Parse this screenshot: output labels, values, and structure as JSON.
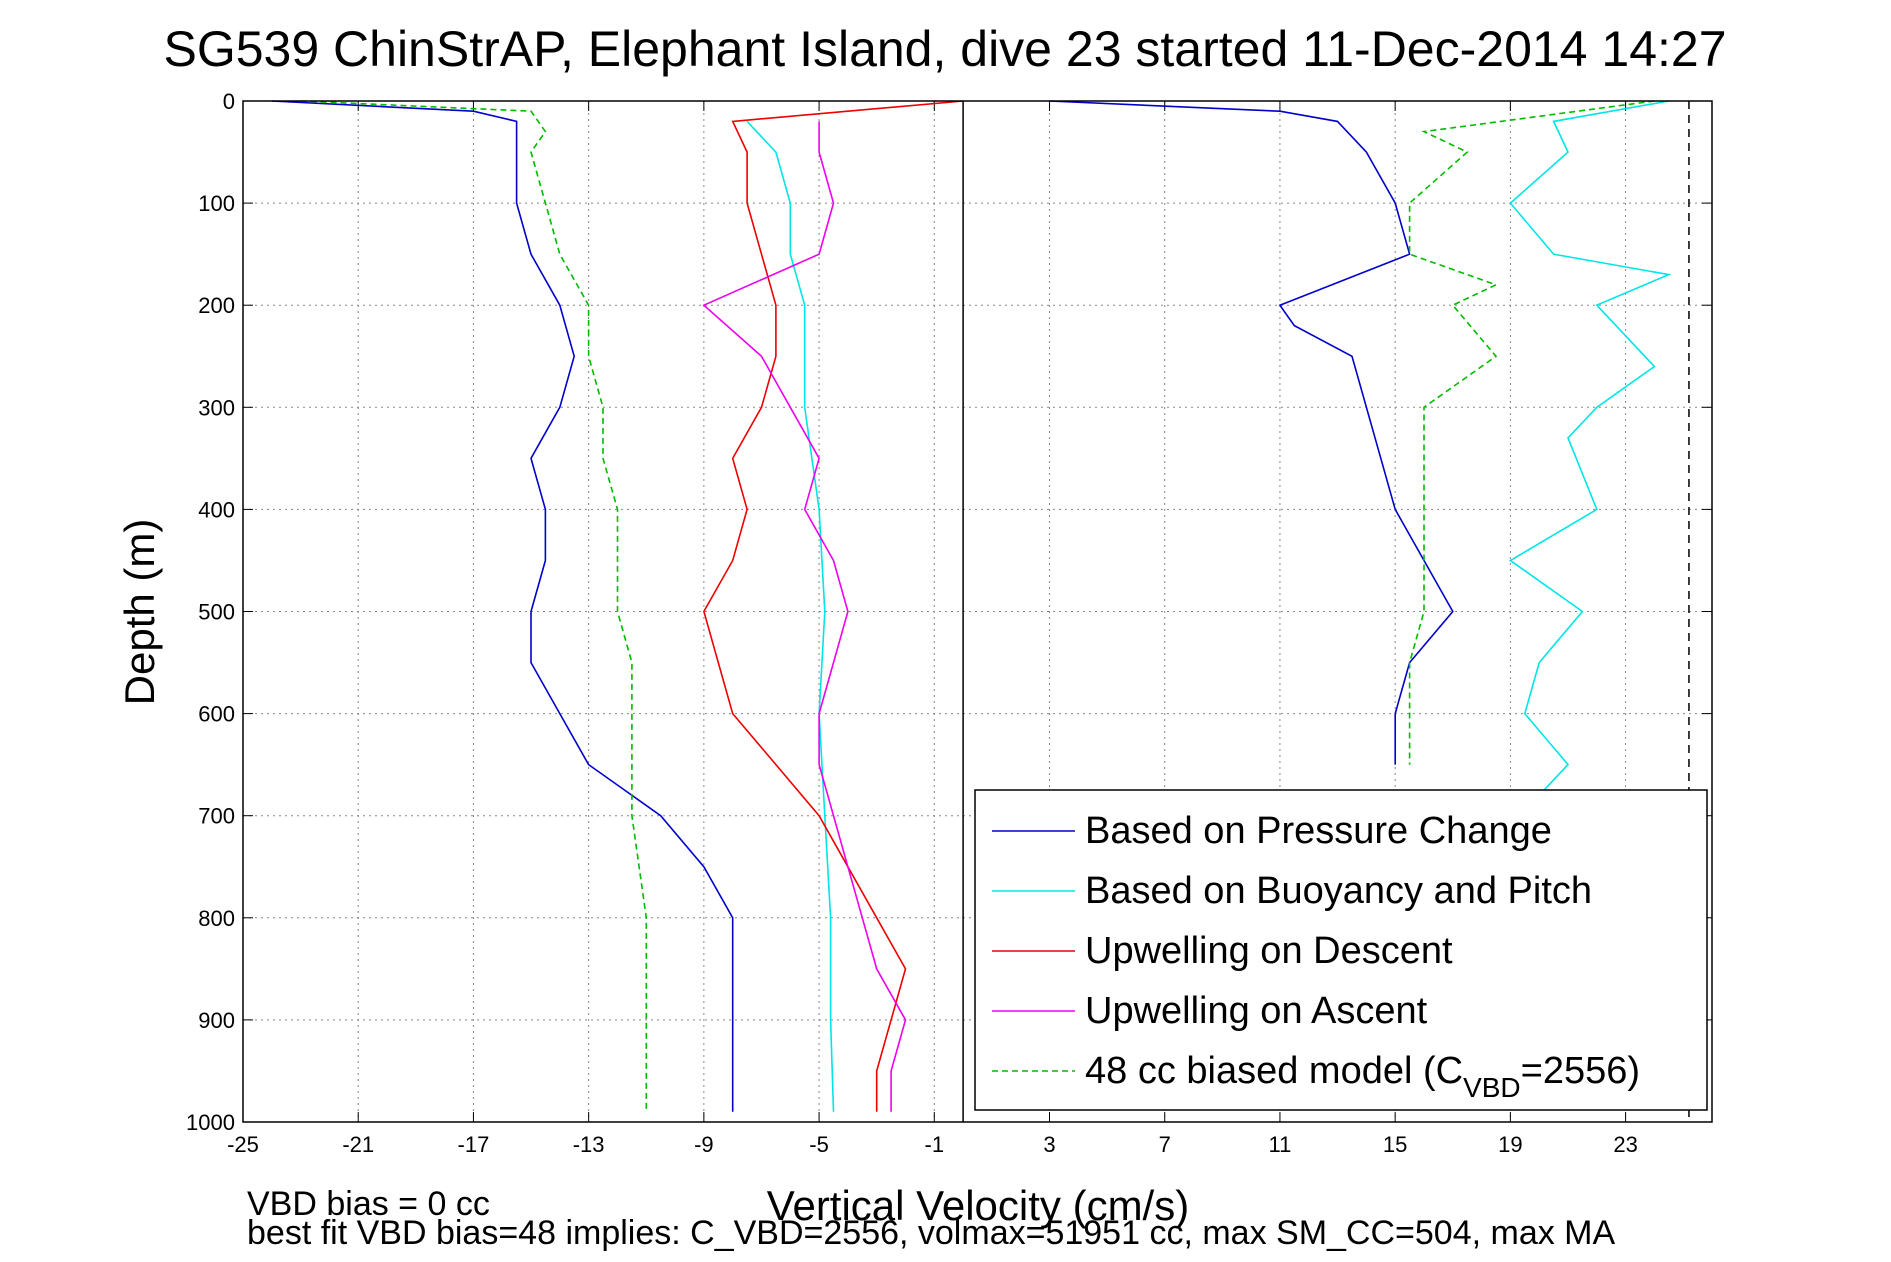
{
  "chart_data": {
    "type": "line",
    "title": "SG539 ChinStrAP, Elephant Island, dive 23 started 11-Dec-2014 14:27",
    "xlabel": "Vertical Velocity (cm/s)",
    "ylabel": "Depth (m)",
    "xlim": [
      -25,
      26
    ],
    "ylim": [
      1000,
      0
    ],
    "y_reversed": true,
    "grid": true,
    "x_ticks": [
      -25,
      -21,
      -17,
      -13,
      -9,
      -5,
      -1,
      3,
      7,
      11,
      15,
      19,
      23
    ],
    "y_ticks": [
      0,
      100,
      200,
      300,
      400,
      500,
      600,
      700,
      800,
      900,
      1000
    ],
    "vertical_lines": [
      {
        "x": 0,
        "style": "solid",
        "color": "#000000"
      },
      {
        "x": 25.2,
        "style": "dashed",
        "color": "#000000"
      }
    ],
    "legend_position": "bottom-right",
    "series": [
      {
        "name": "Based on Pressure Change",
        "color": "#0000cc",
        "style": "solid",
        "panel": "left",
        "depth": [
          0,
          10,
          20,
          50,
          100,
          150,
          200,
          250,
          300,
          350,
          400,
          450,
          500,
          550,
          600,
          650,
          700,
          750,
          800,
          850,
          900,
          950,
          990
        ],
        "values": [
          -24,
          -17,
          -15.5,
          -15.5,
          -15.5,
          -15,
          -14,
          -13.5,
          -14,
          -15,
          -14.5,
          -14.5,
          -15,
          -15,
          -14,
          -13,
          -10.5,
          -9,
          -8,
          -8,
          -8,
          -8,
          -8
        ]
      },
      {
        "name": "Based on Pressure Change",
        "color": "#0000cc",
        "style": "solid",
        "panel": "right",
        "depth": [
          0,
          10,
          20,
          50,
          100,
          150,
          200,
          220,
          250,
          300,
          350,
          400,
          450,
          500,
          550,
          600,
          650
        ],
        "values": [
          3,
          11,
          13,
          14,
          15,
          15.5,
          11,
          11.5,
          13.5,
          14,
          14.5,
          15,
          16,
          17,
          15.5,
          15,
          15
        ]
      },
      {
        "name": "Based on Buoyancy and Pitch",
        "color": "#00e5e5",
        "style": "solid",
        "panel": "left",
        "depth": [
          20,
          50,
          100,
          150,
          200,
          300,
          400,
          500,
          600,
          700,
          800,
          900,
          990
        ],
        "values": [
          -7.5,
          -6.5,
          -6,
          -6,
          -5.5,
          -5.5,
          -5,
          -4.8,
          -5,
          -4.8,
          -4.6,
          -4.6,
          -4.5
        ]
      },
      {
        "name": "Based on Buoyancy and Pitch",
        "color": "#00e5e5",
        "style": "solid",
        "panel": "right",
        "depth": [
          0,
          20,
          50,
          100,
          150,
          170,
          200,
          260,
          300,
          330,
          400,
          450,
          500,
          550,
          600,
          650,
          680
        ],
        "values": [
          24.5,
          20.5,
          21,
          19,
          20.5,
          24.5,
          22,
          24,
          22,
          21,
          22,
          19,
          21.5,
          20,
          19.5,
          21,
          20
        ]
      },
      {
        "name": "Upwelling on Descent",
        "color": "#ee0000",
        "style": "solid",
        "panel": "left",
        "depth": [
          0,
          20,
          50,
          100,
          150,
          200,
          250,
          300,
          350,
          400,
          450,
          500,
          550,
          600,
          650,
          700,
          750,
          800,
          850,
          900,
          950,
          990
        ],
        "values": [
          0,
          -8,
          -7.5,
          -7.5,
          -7,
          -6.5,
          -6.5,
          -7,
          -8,
          -7.5,
          -8,
          -9,
          -8.5,
          -8,
          -6.5,
          -5,
          -4,
          -3,
          -2,
          -2.5,
          -3,
          -3
        ]
      },
      {
        "name": "Upwelling on Ascent",
        "color": "#ee00ee",
        "style": "solid",
        "panel": "left",
        "depth": [
          20,
          50,
          100,
          150,
          200,
          250,
          300,
          350,
          400,
          450,
          500,
          550,
          600,
          650,
          700,
          750,
          800,
          850,
          900,
          950,
          990
        ],
        "values": [
          -5,
          -5,
          -4.5,
          -5,
          -9,
          -7,
          -6,
          -5,
          -5.5,
          -4.5,
          -4,
          -4.5,
          -5,
          -5,
          -4.5,
          -4,
          -3.5,
          -3,
          -2,
          -2.5,
          -2.5
        ]
      },
      {
        "name": "48 cc biased model (C_VBD=2556)",
        "color": "#00bb00",
        "style": "dashed",
        "panel": "left",
        "depth": [
          0,
          10,
          30,
          50,
          100,
          150,
          200,
          250,
          300,
          350,
          400,
          450,
          500,
          550,
          600,
          650,
          700,
          800,
          900,
          990
        ],
        "values": [
          -23,
          -15,
          -14.5,
          -15,
          -14.5,
          -14,
          -13,
          -13,
          -12.5,
          -12.5,
          -12,
          -12,
          -12,
          -11.5,
          -11.5,
          -11.5,
          -11.5,
          -11,
          -11,
          -11
        ]
      },
      {
        "name": "48 cc biased model (C_VBD=2556)",
        "color": "#00bb00",
        "style": "dashed",
        "panel": "right",
        "depth": [
          0,
          30,
          50,
          100,
          150,
          180,
          200,
          250,
          300,
          350,
          400,
          450,
          500,
          550,
          600,
          650
        ],
        "values": [
          24,
          16,
          17.5,
          15.5,
          15.5,
          18.5,
          17,
          18.5,
          16,
          16,
          16,
          16,
          16,
          15.5,
          15.5,
          15.5
        ]
      }
    ]
  },
  "legend": {
    "items": [
      {
        "label": "Based on Pressure Change",
        "color": "#0000cc",
        "dashed": false
      },
      {
        "label": "Based on Buoyancy and Pitch",
        "color": "#00e5e5",
        "dashed": false
      },
      {
        "label": "Upwelling on Descent",
        "color": "#ee0000",
        "dashed": false
      },
      {
        "label": "Upwelling on Ascent",
        "color": "#ee00ee",
        "dashed": false
      },
      {
        "label": "48 cc biased model (C",
        "sub": "VBD",
        "tail": "=2556)",
        "color": "#00bb00",
        "dashed": true
      }
    ]
  },
  "footer": {
    "line1": "VBD bias = 0 cc",
    "line2": "best fit VBD bias=48 implies: C_VBD=2556, volmax=51951 cc, max SM_CC=504, max MA"
  }
}
